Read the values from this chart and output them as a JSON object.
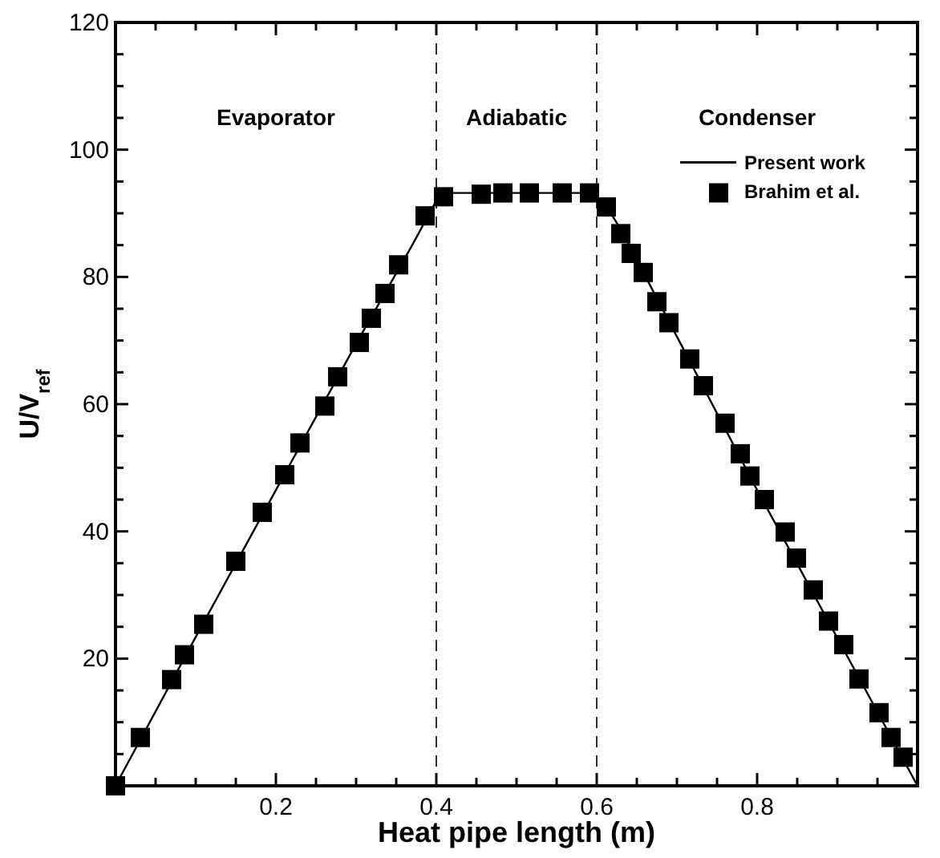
{
  "chart_data": {
    "type": "line",
    "xlabel": "Heat pipe length (m)",
    "ylabel": "U/V$_{ref}$",
    "xlim": [
      0,
      1
    ],
    "ylim": [
      0,
      120
    ],
    "xticks": [
      {
        "value": 0.05,
        "label": null
      },
      {
        "value": 0.1,
        "label": null
      },
      {
        "value": 0.15,
        "label": null
      },
      0.2,
      {
        "value": 0.25,
        "label": null
      },
      {
        "value": 0.3,
        "label": null
      },
      {
        "value": 0.35,
        "label": null
      },
      0.4,
      {
        "value": 0.45,
        "label": null
      },
      {
        "value": 0.5,
        "label": null
      },
      {
        "value": 0.55,
        "label": null
      },
      0.6,
      {
        "value": 0.65,
        "label": null
      },
      {
        "value": 0.7,
        "label": null
      },
      {
        "value": 0.75,
        "label": null
      },
      0.8,
      {
        "value": 0.85,
        "label": null
      },
      {
        "value": 0.9,
        "label": null
      },
      {
        "value": 0.95,
        "label": null
      }
    ],
    "yticks": [
      {
        "value": 5,
        "label": null
      },
      {
        "value": 10,
        "label": null
      },
      {
        "value": 15,
        "label": null
      },
      20,
      {
        "value": 25,
        "label": null
      },
      {
        "value": 30,
        "label": null
      },
      {
        "value": 35,
        "label": null
      },
      40,
      {
        "value": 45,
        "label": null
      },
      {
        "value": 50,
        "label": null
      },
      {
        "value": 55,
        "label": null
      },
      60,
      {
        "value": 65,
        "label": null
      },
      {
        "value": 70,
        "label": null
      },
      {
        "value": 75,
        "label": null
      },
      80,
      {
        "value": 85,
        "label": null
      },
      {
        "value": 90,
        "label": null
      },
      {
        "value": 95,
        "label": null
      },
      100,
      {
        "value": 105,
        "label": null
      },
      {
        "value": 110,
        "label": null
      },
      {
        "value": 115,
        "label": null
      },
      120
    ],
    "grid": false,
    "legend": "top right",
    "series": [
      {
        "name": "Present work",
        "color": "#000000",
        "marker": "none",
        "line_style": "solid",
        "x": [
          0,
          0.1,
          0.2,
          0.3,
          0.37,
          0.4,
          0.42,
          0.59,
          0.61,
          0.63,
          0.8,
          1.0
        ],
        "values": [
          0,
          23.4,
          46.5,
          69.5,
          85,
          92,
          93.2,
          93.2,
          91.5,
          87.5,
          46.5,
          0
        ]
      },
      {
        "name": "Brahim et al.",
        "type": "scatter",
        "color": "#000000",
        "marker": "square",
        "x": [
          0,
          0.031,
          0.07,
          0.086,
          0.11,
          0.15,
          0.183,
          0.211,
          0.23,
          0.261,
          0.277,
          0.304,
          0.319,
          0.336,
          0.353,
          0.386,
          0.409,
          0.456,
          0.483,
          0.516,
          0.557,
          0.591,
          0.612,
          0.63,
          0.643,
          0.658,
          0.675,
          0.69,
          0.716,
          0.733,
          0.76,
          0.779,
          0.791,
          0.809,
          0.835,
          0.849,
          0.87,
          0.889,
          0.908,
          0.927,
          0.952,
          0.967,
          0.982
        ],
        "values": [
          0,
          7.6,
          16.7,
          20.6,
          25.4,
          35.3,
          43,
          48.9,
          53.9,
          59.7,
          64.3,
          69.7,
          73.5,
          77.4,
          81.9,
          89.6,
          92.6,
          93,
          93.2,
          93.2,
          93.2,
          93.2,
          91,
          86.8,
          83.7,
          80.7,
          76.1,
          72.8,
          67.1,
          62.9,
          57,
          52.2,
          48.7,
          45,
          39.9,
          35.8,
          30.8,
          25.9,
          22.2,
          16.8,
          11.5,
          7.6,
          4.5
        ]
      }
    ],
    "ref_lines": [
      {
        "axis": "x",
        "value": 0.4,
        "color": "#000000",
        "line_style": "dashed"
      },
      {
        "axis": "x",
        "value": 0.6,
        "color": "#000000",
        "line_style": "dashed"
      }
    ],
    "annotations": [
      "Evaporator",
      "Adiabatic",
      "Condenser"
    ]
  }
}
